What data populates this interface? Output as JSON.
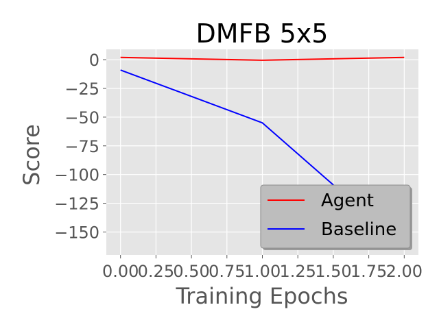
{
  "chart_data": {
    "type": "line",
    "title": "DMFB 5x5",
    "xlabel": "Training Epochs",
    "ylabel": "Score",
    "xlim": [
      -0.1,
      2.1
    ],
    "ylim": [
      -170,
      9
    ],
    "xticks": [
      0.0,
      0.25,
      0.5,
      0.75,
      1.0,
      1.25,
      1.5,
      1.75,
      2.0
    ],
    "xtick_labels": [
      "0.00",
      "0.25",
      "0.50",
      "0.75",
      "1.00",
      "1.25",
      "1.50",
      "1.75",
      "2.00"
    ],
    "yticks": [
      0,
      -25,
      -50,
      -75,
      -100,
      -125,
      -150
    ],
    "ytick_labels": [
      "0",
      "−25",
      "−50",
      "−75",
      "−100",
      "−125",
      "−150"
    ],
    "grid": true,
    "legend_position": "bottom-right",
    "colors": {
      "background": "#e5e5e5",
      "grid": "#ffffff"
    },
    "x": [
      0,
      1,
      2
    ],
    "series": [
      {
        "name": "Agent",
        "color": "#ff0000",
        "values": [
          2,
          -0.5,
          2
        ]
      },
      {
        "name": "Baseline",
        "color": "#0000ff",
        "values": [
          -9,
          -55,
          -163
        ]
      }
    ]
  }
}
